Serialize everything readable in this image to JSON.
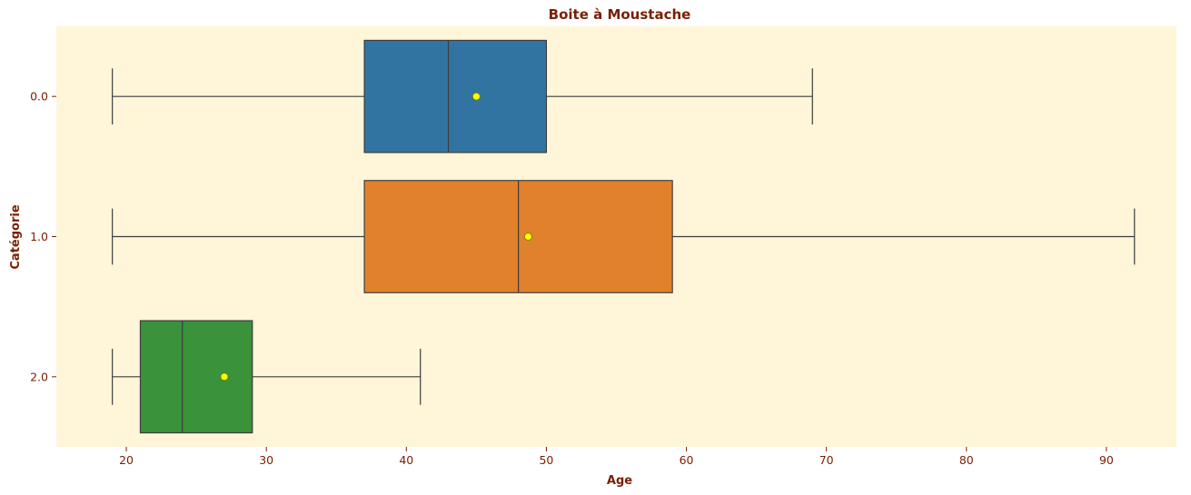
{
  "chart_data": {
    "type": "box",
    "orientation": "horizontal",
    "title": "Boite à Moustache",
    "xlabel": "Age",
    "ylabel": "Catégorie",
    "xlim": [
      15,
      95
    ],
    "xticks": [
      20,
      30,
      40,
      50,
      60,
      70,
      80,
      90
    ],
    "categories": [
      "0.0",
      "1.0",
      "2.0"
    ],
    "series": [
      {
        "category": "0.0",
        "whisker_low": 19,
        "q1": 37,
        "median": 43,
        "q3": 50,
        "whisker_high": 69,
        "mean": 45,
        "color": "#3274a1"
      },
      {
        "category": "1.0",
        "whisker_low": 19,
        "q1": 37,
        "median": 48,
        "q3": 59,
        "whisker_high": 92,
        "mean": 48.7,
        "color": "#e1812c"
      },
      {
        "category": "2.0",
        "whisker_low": 19,
        "q1": 21,
        "median": 24,
        "q3": 29,
        "whisker_high": 41,
        "mean": 27,
        "color": "#3a923a"
      }
    ],
    "mean_marker_color": "#ffff00",
    "plot_background": "#fff5d9",
    "text_color": "#7a1f00",
    "grid": false,
    "legend": "none"
  }
}
